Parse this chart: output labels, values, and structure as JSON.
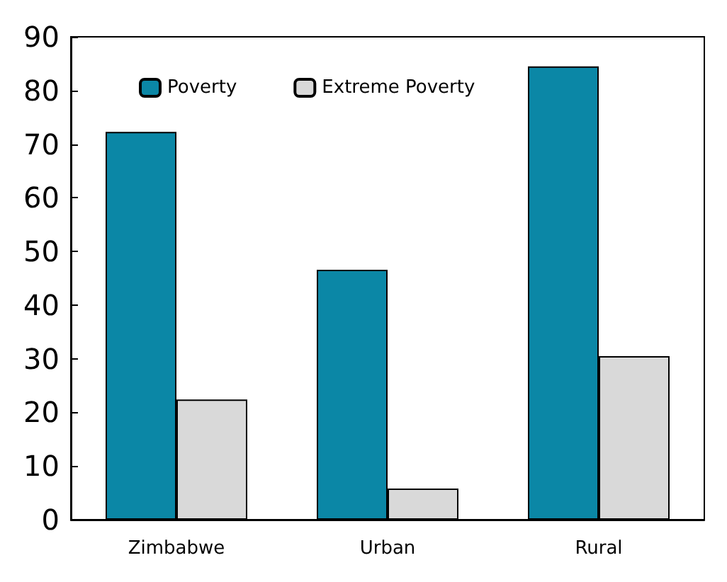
{
  "chart_data": {
    "type": "bar",
    "categories": [
      "Zimbabwe",
      "Urban",
      "Rural"
    ],
    "series": [
      {
        "name": "Poverty",
        "color": "#0b87a6",
        "values": [
          72.3,
          46.6,
          84.5
        ]
      },
      {
        "name": "Extreme Poverty",
        "color": "#d9d9d9",
        "values": [
          22.4,
          5.8,
          30.5
        ]
      }
    ],
    "ylim": [
      0,
      90
    ],
    "yticks": [
      0,
      10,
      20,
      30,
      40,
      50,
      60,
      70,
      80,
      90
    ],
    "grid": false,
    "legend": "top left"
  }
}
